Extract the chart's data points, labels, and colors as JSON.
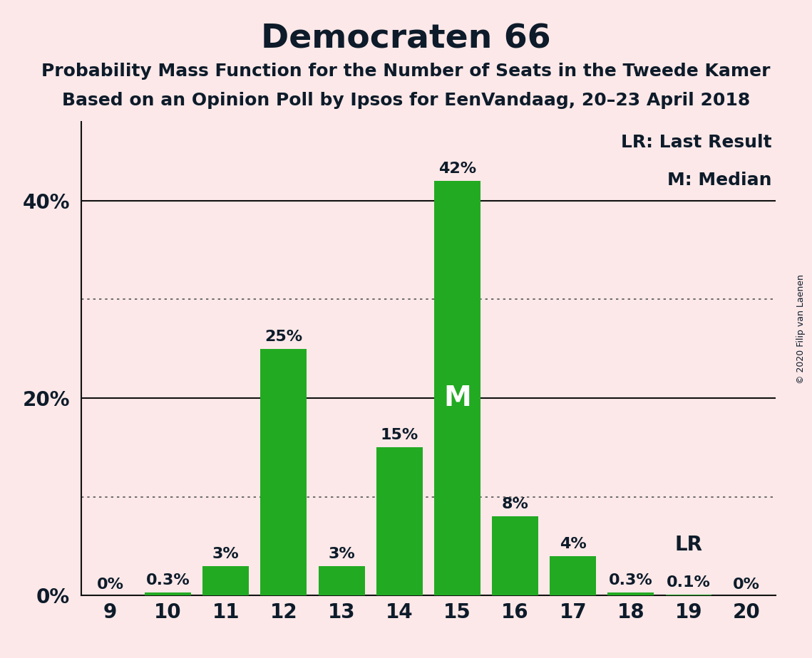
{
  "title": "Democraten 66",
  "subtitle1": "Probability Mass Function for the Number of Seats in the Tweede Kamer",
  "subtitle2": "Based on an Opinion Poll by Ipsos for EenVandaag, 20–23 April 2018",
  "copyright": "© 2020 Filip van Laenen",
  "seats": [
    9,
    10,
    11,
    12,
    13,
    14,
    15,
    16,
    17,
    18,
    19,
    20
  ],
  "values": [
    0.0,
    0.3,
    3.0,
    25.0,
    3.0,
    15.0,
    42.0,
    8.0,
    4.0,
    0.3,
    0.1,
    0.0
  ],
  "labels": [
    "0%",
    "0.3%",
    "3%",
    "25%",
    "3%",
    "15%",
    "42%",
    "8%",
    "4%",
    "0.3%",
    "0.1%",
    "0%"
  ],
  "bar_color": "#22aa22",
  "background_color": "#fce8e8",
  "median_seat": 15,
  "lr_seat": 19,
  "legend_lr": "LR: Last Result",
  "legend_m": "M: Median",
  "ylim": [
    0,
    48
  ],
  "xlim": [
    8.5,
    20.5
  ],
  "dotted_grid_lines": [
    10,
    30
  ],
  "solid_grid_lines": [
    20,
    40
  ],
  "text_color": "#0d1b2a",
  "title_fontsize": 34,
  "subtitle_fontsize": 18,
  "label_fontsize": 16,
  "tick_fontsize": 20,
  "legend_fontsize": 18
}
